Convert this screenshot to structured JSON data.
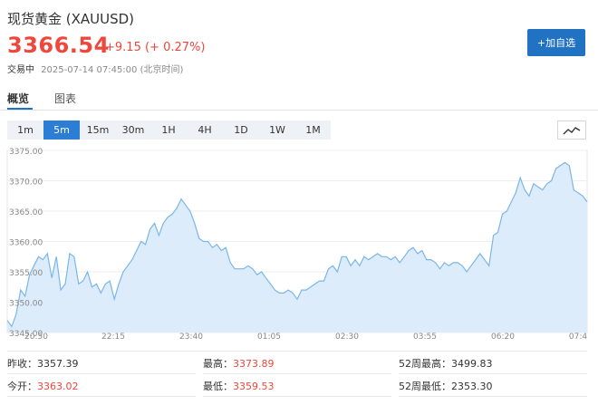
{
  "header": {
    "title": "现货黄金 (XAUUSD)",
    "price": "3366.54",
    "change": "+9.15 (+ 0.27%)",
    "status_label": "交易中",
    "timestamp": "2025-07-14 07:45:00 (北京时间)",
    "watch_button": "+加自选"
  },
  "tabs": [
    {
      "label": "概览",
      "active": true
    },
    {
      "label": "图表",
      "active": false
    }
  ],
  "intervals": [
    {
      "label": "1m",
      "active": false
    },
    {
      "label": "5m",
      "active": true
    },
    {
      "label": "15m",
      "active": false
    },
    {
      "label": "30m",
      "active": false
    },
    {
      "label": "1H",
      "active": false
    },
    {
      "label": "4H",
      "active": false
    },
    {
      "label": "1D",
      "active": false
    },
    {
      "label": "1W",
      "active": false
    },
    {
      "label": "1M",
      "active": false
    }
  ],
  "chart_type_icon": "line-chart-icon",
  "colors": {
    "accent": "#2272c4",
    "up": "#f0463b",
    "line": "#7ab6ea",
    "fill": "#dcecfb"
  },
  "chart_data": {
    "type": "area",
    "ylim": [
      3345.0,
      3375.0
    ],
    "y_ticks": [
      "3375.00",
      "3370.00",
      "3365.00",
      "3360.00",
      "3355.00",
      "3350.00",
      "3345.00"
    ],
    "x_ticks": [
      "20:50",
      "22:15",
      "23:40",
      "01:05",
      "02:30",
      "03:55",
      "06:20",
      "07:4"
    ],
    "values": [
      3347.0,
      3346.0,
      3348.0,
      3352.0,
      3351.0,
      3354.5,
      3356.0,
      3357.5,
      3357.0,
      3358.0,
      3354.0,
      3357.5,
      3352.0,
      3353.0,
      3358.0,
      3357.5,
      3353.0,
      3353.5,
      3355.0,
      3352.5,
      3353.0,
      3351.5,
      3353.0,
      3353.5,
      3350.5,
      3353.0,
      3355.0,
      3356.0,
      3357.0,
      3358.5,
      3360.0,
      3359.5,
      3362.0,
      3363.0,
      3361.0,
      3363.0,
      3364.0,
      3364.5,
      3365.5,
      3367.0,
      3366.0,
      3365.0,
      3363.0,
      3360.5,
      3360.0,
      3360.0,
      3359.0,
      3359.5,
      3358.5,
      3359.0,
      3356.5,
      3355.5,
      3355.5,
      3355.5,
      3356.0,
      3355.5,
      3354.5,
      3355.0,
      3354.0,
      3353.0,
      3352.0,
      3351.5,
      3351.5,
      3352.0,
      3351.5,
      3350.5,
      3352.0,
      3352.0,
      3352.5,
      3353.0,
      3353.5,
      3353.5,
      3355.5,
      3356.0,
      3355.0,
      3357.5,
      3357.5,
      3356.0,
      3357.0,
      3356.0,
      3357.5,
      3357.0,
      3357.5,
      3358.0,
      3357.5,
      3357.5,
      3357.0,
      3357.5,
      3356.5,
      3357.5,
      3358.5,
      3359.0,
      3358.0,
      3358.5,
      3357.0,
      3357.0,
      3356.5,
      3355.5,
      3356.5,
      3356.0,
      3356.5,
      3356.5,
      3356.0,
      3355.0,
      3356.0,
      3357.0,
      3358.0,
      3357.0,
      3356.0,
      3361.0,
      3361.5,
      3364.5,
      3365.0,
      3366.5,
      3368.0,
      3370.5,
      3368.5,
      3367.5,
      3369.5,
      3369.0,
      3368.5,
      3369.5,
      3370.0,
      3372.0,
      3372.5,
      3373.0,
      3372.5,
      3368.5,
      3368.0,
      3367.5,
      3366.5
    ]
  },
  "stats": {
    "prev_close_label": "昨收：",
    "prev_close": "3357.39",
    "high_label": "最高：",
    "high": "3373.89",
    "high52_label": "52周最高：",
    "high52": "3499.83",
    "open_label": "今开：",
    "open": "3363.02",
    "low_label": "最低：",
    "low": "3359.53",
    "low52_label": "52周最低：",
    "low52": "2353.30"
  }
}
